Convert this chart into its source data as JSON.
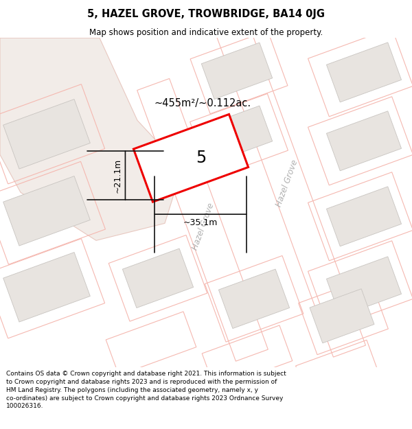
{
  "title": "5, HAZEL GROVE, TROWBRIDGE, BA14 0JG",
  "subtitle": "Map shows position and indicative extent of the property.",
  "footer": "Contains OS data © Crown copyright and database right 2021. This information is subject to Crown copyright and database rights 2023 and is reproduced with the permission of HM Land Registry. The polygons (including the associated geometry, namely x, y co-ordinates) are subject to Crown copyright and database rights 2023 Ordnance Survey 100026316.",
  "bg_color": "#ffffff",
  "land_fill": "#f2ece8",
  "land_edge": "#e8c8c0",
  "parcel_line": "#f5b8b0",
  "building_fill": "#e8e4e0",
  "building_edge": "#c8c4c0",
  "highlight_fill": "#ffffff",
  "highlight_edge": "#ee0000",
  "highlight_lw": 2.2,
  "dim_color": "#111111",
  "area_text": "~455m²/~0.112ac.",
  "label_text": "5",
  "dim_width": "~35.1m",
  "dim_height": "~21.1m",
  "street_color": "#b0b0b0",
  "street_label": "Hazel Grove",
  "title_fontsize": 10.5,
  "subtitle_fontsize": 8.5,
  "footer_fontsize": 6.5
}
